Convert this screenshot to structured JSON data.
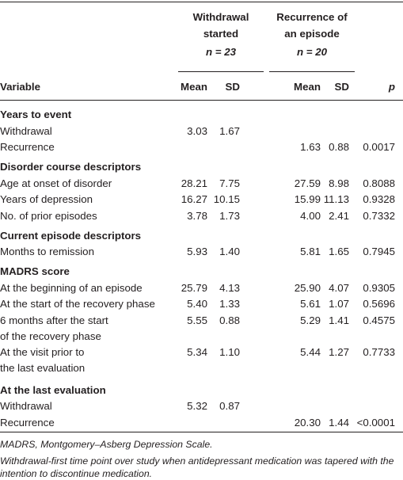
{
  "table": {
    "groups": [
      {
        "title": [
          "Withdrawal",
          "started"
        ],
        "n": "n = 23"
      },
      {
        "title": [
          "Recurrence of",
          "an episode"
        ],
        "n": "n = 20"
      }
    ],
    "columns": [
      "Variable",
      "Mean",
      "SD",
      "Mean",
      "SD",
      "p"
    ],
    "sections": [
      {
        "title": "Years to event",
        "rows": [
          {
            "label": [
              "Withdrawal"
            ],
            "cells": [
              "3.03",
              "1.67",
              null,
              null,
              null
            ]
          },
          {
            "label": [
              "Recurrence"
            ],
            "cells": [
              null,
              null,
              "1.63",
              "0.88",
              "0.0017"
            ]
          }
        ]
      },
      {
        "title": "Disorder course descriptors",
        "rows": [
          {
            "label": [
              "Age at onset of disorder"
            ],
            "cells": [
              "28.21",
              "7.75",
              "27.59",
              "8.98",
              "0.8088"
            ]
          },
          {
            "label": [
              "Years of depression"
            ],
            "cells": [
              "16.27",
              "10.15",
              "15.99",
              "11.13",
              "0.9328"
            ]
          },
          {
            "label": [
              "No. of prior episodes"
            ],
            "cells": [
              "3.78",
              "1.73",
              "4.00",
              "2.41",
              "0.7332"
            ]
          }
        ]
      },
      {
        "title": "Current episode descriptors",
        "rows": [
          {
            "label": [
              "Months to remission"
            ],
            "cells": [
              "5.93",
              "1.40",
              "5.81",
              "1.65",
              "0.7945"
            ]
          }
        ]
      },
      {
        "title": "MADRS score",
        "rows": [
          {
            "label": [
              "At the beginning of an episode"
            ],
            "cells": [
              "25.79",
              "4.13",
              "25.90",
              "4.07",
              "0.9305"
            ]
          },
          {
            "label": [
              "At the start of the recovery phase"
            ],
            "cells": [
              "5.40",
              "1.33",
              "5.61",
              "1.07",
              "0.5696"
            ]
          },
          {
            "label": [
              "6 months after the start",
              "of the recovery phase"
            ],
            "cells": [
              "5.55",
              "0.88",
              "5.29",
              "1.41",
              "0.4575"
            ]
          },
          {
            "label": [
              "At the visit prior to",
              "the last evaluation"
            ],
            "cells": [
              "5.34",
              "1.10",
              "5.44",
              "1.27",
              "0.7733"
            ]
          }
        ]
      },
      {
        "title": "At the last evaluation",
        "rows": [
          {
            "label": [
              "Withdrawal"
            ],
            "cells": [
              "5.32",
              "0.87",
              null,
              null,
              null
            ]
          },
          {
            "label": [
              "Recurrence"
            ],
            "cells": [
              null,
              null,
              "20.30",
              "1.44",
              "<0.0001"
            ]
          }
        ]
      }
    ],
    "footnotes": [
      "MADRS, Montgomery–Asberg Depression Scale.",
      "Withdrawal-first time point over study when antidepressant medication was tapered with the intention to discontinue medication."
    ]
  }
}
